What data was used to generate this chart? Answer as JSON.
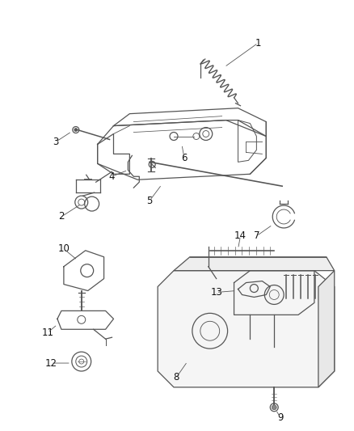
{
  "bg_color": "#ffffff",
  "line_color": "#555555",
  "label_color": "#111111",
  "fig_width": 4.38,
  "fig_height": 5.33,
  "dpi": 100
}
